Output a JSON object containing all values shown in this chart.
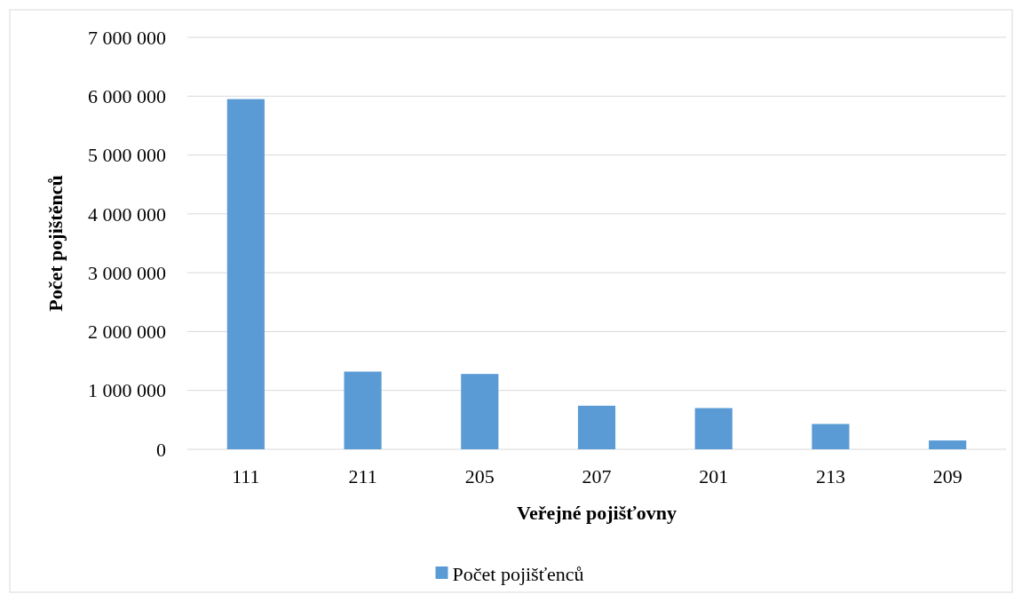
{
  "chart_data": {
    "type": "bar",
    "xlabel": "Veřejné pojišťovny",
    "ylabel": "Počet pojištěnců",
    "categories": [
      "111",
      "211",
      "205",
      "207",
      "201",
      "213",
      "209"
    ],
    "series": [
      {
        "name": "Počet pojišťenců",
        "color": "#5b9bd5",
        "values": [
          5950000,
          1320000,
          1280000,
          740000,
          700000,
          430000,
          150000
        ]
      }
    ],
    "ylim": [
      0,
      7000000
    ],
    "yticks": [
      {
        "value": 0,
        "label": "0"
      },
      {
        "value": 1000000,
        "label": "1 000 000"
      },
      {
        "value": 2000000,
        "label": "2 000 000"
      },
      {
        "value": 3000000,
        "label": "3 000 000"
      },
      {
        "value": 4000000,
        "label": "4 000 000"
      },
      {
        "value": 5000000,
        "label": "5 000 000"
      },
      {
        "value": 6000000,
        "label": "6 000 000"
      },
      {
        "value": 7000000,
        "label": "7 000 000"
      }
    ],
    "grid": "y",
    "legend": "bottom"
  }
}
